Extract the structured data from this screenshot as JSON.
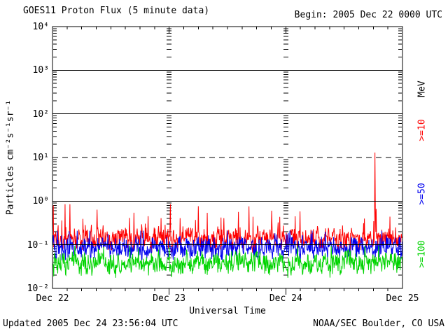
{
  "header": {
    "title": "GOES11 Proton Flux (5 minute data)",
    "begin_label": "Begin: 2005 Dec 22 0000 UTC"
  },
  "footer": {
    "updated": "Updated 2005 Dec 24 23:56:04 UTC",
    "credit": "NOAA/SEC Boulder, CO USA"
  },
  "chart_data": {
    "type": "line",
    "title": "GOES11 Proton Flux (5 minute data)",
    "xlabel": "Universal Time",
    "ylabel": "Particles cm⁻²s⁻¹sr⁻¹",
    "x_tick_labels": [
      "Dec 22",
      "Dec 23",
      "Dec 24",
      "Dec 25"
    ],
    "x_range_days": [
      0,
      3
    ],
    "x_minor_tick_hours": 3,
    "samples_per_day": 288,
    "y_scale": "log",
    "y_range": [
      0.01,
      10000
    ],
    "y_tick_labels": [
      "10⁴",
      "10³",
      "10²",
      "10¹",
      "10⁰",
      "10⁻¹",
      "10⁻²"
    ],
    "y_tick_exponents": [
      4,
      3,
      2,
      1,
      0,
      -1,
      -2
    ],
    "solid_gridlines_at": [
      1000,
      100,
      1,
      0.1
    ],
    "dashed_gridline_at": 10,
    "grid_color": "#000000",
    "legend": {
      "unit_label": "MeV",
      "unit_color": "#000000",
      "position": "right"
    },
    "series": [
      {
        "label": ">=10",
        "color": "#FF0000",
        "typical_flux": 0.14,
        "flux_range": [
          0.06,
          0.85
        ],
        "log10_center": -0.86,
        "spike": {
          "day": 2.765,
          "peak_flux": 13
        },
        "early_peak_flux": 0.8
      },
      {
        "label": ">=50",
        "color": "#0000EE",
        "typical_flux": 0.085,
        "flux_range": [
          0.038,
          0.21
        ],
        "log10_center": -1.08
      },
      {
        "label": ">=100",
        "color": "#00D400",
        "typical_flux": 0.038,
        "flux_range": [
          0.015,
          0.095
        ],
        "log10_center": -1.43
      }
    ]
  }
}
